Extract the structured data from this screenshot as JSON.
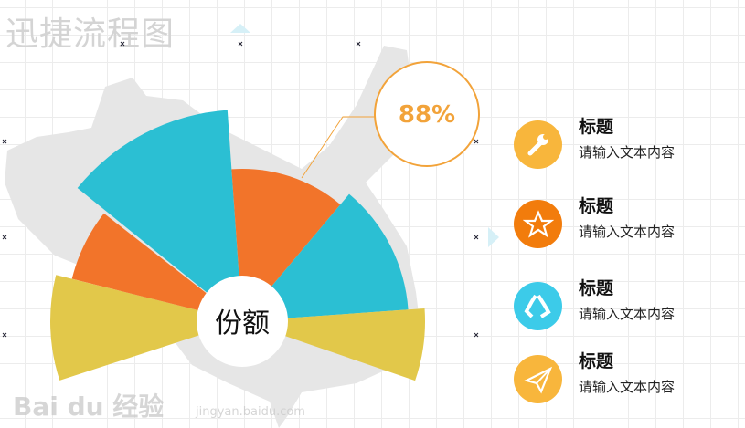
{
  "app_title": "迅捷流程图",
  "diagram": {
    "center_label": "份额",
    "callout_value": "88%",
    "colors": {
      "teal": "#2bbfd3",
      "orange": "#f2742a",
      "yellow": "#e2c84a",
      "callout": "#f2a33a",
      "map": "#e6e6e6"
    }
  },
  "items": [
    {
      "title": "标题",
      "text": "请输入文本内容",
      "icon": "wrench-icon",
      "color": "#f8b63c"
    },
    {
      "title": "标题",
      "text": "请输入文本内容",
      "icon": "star-icon",
      "color": "#f27c0c"
    },
    {
      "title": "标题",
      "text": "请输入文本内容",
      "icon": "recycle-icon",
      "color": "#3ccbe9"
    },
    {
      "title": "标题",
      "text": "请输入文本内容",
      "icon": "paper-plane-icon",
      "color": "#f8b63c"
    }
  ],
  "watermark": {
    "brand": "Bai du 经验",
    "url": "jingyan.baidu.com"
  }
}
